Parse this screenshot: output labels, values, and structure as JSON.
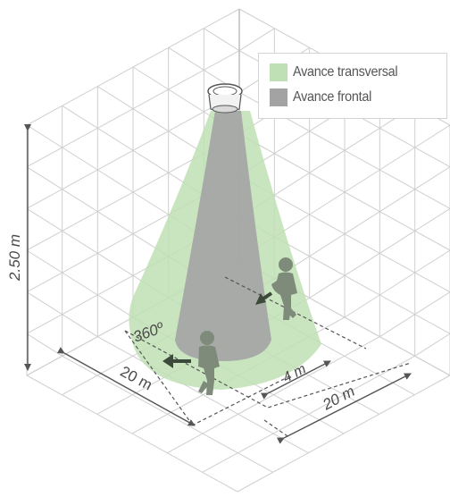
{
  "legend": {
    "items": [
      {
        "label": "Avance transversal",
        "color": "#bfe0b4"
      },
      {
        "label": "Avance frontal",
        "color": "#a3a3a3"
      }
    ]
  },
  "labels": {
    "height": "2.50 m",
    "angle": "360º",
    "width_left": "20 m",
    "width_right": "20 m",
    "frontal_width": "4 m"
  },
  "colors": {
    "grid": "#cfcfcf",
    "transversal_cone": "#bfe0b4",
    "frontal_cone": "#a3a3a3",
    "person": "#7f8b7a",
    "arrow": "#3c4a3c",
    "dimension": "#555555"
  },
  "icons": {
    "sensor": "ceiling-sensor-icon",
    "person": "walking-person-icon",
    "arrow": "direction-arrow-icon"
  }
}
